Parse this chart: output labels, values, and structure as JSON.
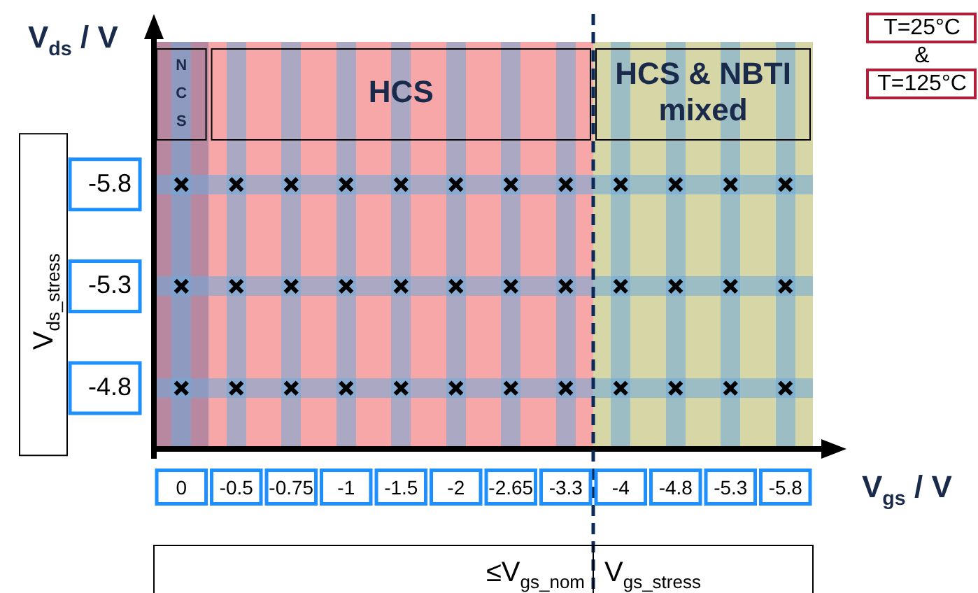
{
  "chart_data": {
    "type": "scatter",
    "ylabel": "V$_{ds}$ / V",
    "xlabel": "V$_{gs}$ / V",
    "categories": [
      "0",
      "-0.5",
      "-0.75",
      "-1",
      "-1.5",
      "-2",
      "-2.65",
      "-3.3",
      "-4",
      "-4.8",
      "-5.3",
      "-5.8"
    ],
    "series": [
      {
        "color": "#000000",
        "values": [
          -5.8,
          -5.8,
          -5.8,
          -5.8,
          -5.8,
          -5.8,
          -5.8,
          -5.8,
          -5.8,
          -5.8,
          -5.8,
          -5.8
        ]
      },
      {
        "color": "#000000",
        "values": [
          -5.3,
          -5.3,
          -5.3,
          -5.3,
          -5.3,
          -5.3,
          -5.3,
          -5.3,
          -5.3,
          -5.3,
          -5.3,
          -5.3
        ]
      },
      {
        "color": "#000000",
        "values": [
          -4.8,
          -4.8,
          -4.8,
          -4.8,
          -4.8,
          -4.8,
          -4.8,
          -4.8,
          -4.8,
          -4.8,
          -4.8,
          -4.8
        ]
      }
    ],
    "ylim": [
      -4.5,
      -6.5
    ],
    "yticks": [
      -4.8,
      -5.3,
      -5.8
    ],
    "bands": [
      {
        "axis": "x",
        "from": "0",
        "to": "0",
        "label": "N C S",
        "color": "#a06080"
      },
      {
        "axis": "x",
        "from": "-0.5",
        "to": "-3.3",
        "label": "HCS",
        "color": "#f48a8a"
      },
      {
        "axis": "x",
        "from": "-4",
        "to": "-5.8",
        "label": "HCS & NBTI mixed",
        "color": "#c8c888"
      }
    ],
    "ref_lines": [
      {
        "axis": "x",
        "value": "-4",
        "color": "#0a2a5a",
        "line_style": "dashed"
      }
    ],
    "annotations": [
      "V$_{ds_stress}$",
      "≤V$_{gs_nom}$",
      "V$_{gs_stress}$",
      "T=25°C",
      "&",
      "T=125°C"
    ],
    "grid": true,
    "marker": "cross",
    "legend": false
  }
}
